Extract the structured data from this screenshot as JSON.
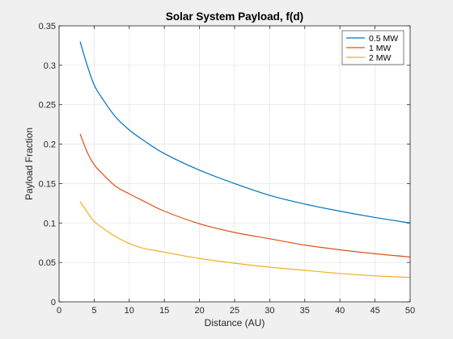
{
  "chart_data": {
    "type": "line",
    "title": "Solar System Payload, f(d)",
    "xlabel": "Distance (AU)",
    "ylabel": "Payload Fraction",
    "xlim": [
      0,
      50
    ],
    "ylim": [
      0,
      0.35
    ],
    "xticks": [
      0,
      5,
      10,
      15,
      20,
      25,
      30,
      35,
      40,
      45,
      50
    ],
    "yticks": [
      0,
      0.05,
      0.1,
      0.15,
      0.2,
      0.25,
      0.3,
      0.35
    ],
    "xtick_labels": [
      "0",
      "5",
      "10",
      "15",
      "20",
      "25",
      "30",
      "35",
      "40",
      "45",
      "50"
    ],
    "ytick_labels": [
      "0",
      "0.05",
      "0.1",
      "0.15",
      "0.2",
      "0.25",
      "0.3",
      "0.35"
    ],
    "grid": true,
    "legend_position": "top-right",
    "background": "#f0f0f0",
    "axes_background": "#ffffff",
    "series": [
      {
        "name": "0.5 MW",
        "color": "#0072bd",
        "points": [
          [
            3,
            0.33
          ],
          [
            4,
            0.3
          ],
          [
            5,
            0.275
          ],
          [
            6,
            0.26
          ],
          [
            8,
            0.235
          ],
          [
            10,
            0.218
          ],
          [
            12,
            0.205
          ],
          [
            15,
            0.188
          ],
          [
            20,
            0.167
          ],
          [
            25,
            0.15
          ],
          [
            30,
            0.135
          ],
          [
            35,
            0.124
          ],
          [
            40,
            0.115
          ],
          [
            45,
            0.107
          ],
          [
            50,
            0.1
          ]
        ]
      },
      {
        "name": "1 MW",
        "color": "#d95319",
        "points": [
          [
            3,
            0.213
          ],
          [
            4,
            0.19
          ],
          [
            5,
            0.174
          ],
          [
            6,
            0.164
          ],
          [
            8,
            0.147
          ],
          [
            10,
            0.137
          ],
          [
            12,
            0.128
          ],
          [
            15,
            0.115
          ],
          [
            20,
            0.099
          ],
          [
            25,
            0.088
          ],
          [
            30,
            0.08
          ],
          [
            35,
            0.072
          ],
          [
            40,
            0.066
          ],
          [
            45,
            0.061
          ],
          [
            50,
            0.057
          ]
        ]
      },
      {
        "name": "2 MW",
        "color": "#edb120",
        "points": [
          [
            3,
            0.127
          ],
          [
            4,
            0.114
          ],
          [
            5,
            0.102
          ],
          [
            6,
            0.095
          ],
          [
            8,
            0.083
          ],
          [
            10,
            0.074
          ],
          [
            12,
            0.068
          ],
          [
            15,
            0.063
          ],
          [
            20,
            0.055
          ],
          [
            25,
            0.049
          ],
          [
            30,
            0.044
          ],
          [
            35,
            0.04
          ],
          [
            40,
            0.036
          ],
          [
            45,
            0.033
          ],
          [
            50,
            0.031
          ]
        ]
      }
    ]
  }
}
